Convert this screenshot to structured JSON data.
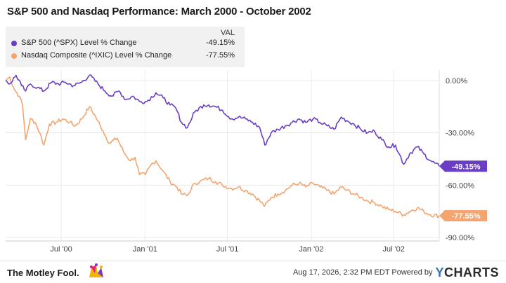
{
  "chart_data": {
    "type": "line",
    "title": "S&P 500 and Nasdaq Performance: March 2000 - October 2002",
    "value_header": "VAL",
    "y_unit": "%",
    "ylim": [
      -92,
      6
    ],
    "xlim": [
      "2000-03-01",
      "2002-10-09"
    ],
    "y_ticks": [
      {
        "value": 0,
        "label": "0.00%"
      },
      {
        "value": -30,
        "label": "-30.00%"
      },
      {
        "value": -60,
        "label": "-60.00%"
      },
      {
        "value": -90,
        "label": "-90.00%"
      }
    ],
    "x_ticks": [
      {
        "date": "2000-07-01",
        "label": "Jul '00"
      },
      {
        "date": "2001-01-01",
        "label": "Jan '01"
      },
      {
        "date": "2001-07-01",
        "label": "Jul '01"
      },
      {
        "date": "2002-01-01",
        "label": "Jan '02"
      },
      {
        "date": "2002-07-01",
        "label": "Jul '02"
      }
    ],
    "grid": true,
    "legend_position": "top-left",
    "series": [
      {
        "name": "S&P 500 (^SPX) Level % Change",
        "value_label": "-49.15%",
        "end_label": "-49.15%",
        "color": "#6a3ec4",
        "points": [
          [
            "2000-03-01",
            0
          ],
          [
            "2000-03-10",
            -2
          ],
          [
            "2000-03-24",
            3
          ],
          [
            "2000-04-05",
            -3
          ],
          [
            "2000-04-14",
            -6
          ],
          [
            "2000-04-24",
            -2
          ],
          [
            "2000-05-10",
            -4
          ],
          [
            "2000-05-24",
            -6
          ],
          [
            "2000-06-10",
            -1
          ],
          [
            "2000-06-25",
            -2
          ],
          [
            "2000-07-10",
            -1
          ],
          [
            "2000-07-28",
            -3
          ],
          [
            "2000-08-15",
            -1
          ],
          [
            "2000-09-01",
            3
          ],
          [
            "2000-09-20",
            -2
          ],
          [
            "2000-10-05",
            -6
          ],
          [
            "2000-10-20",
            -9
          ],
          [
            "2000-11-05",
            -6
          ],
          [
            "2000-11-20",
            -11
          ],
          [
            "2000-12-05",
            -9
          ],
          [
            "2000-12-20",
            -12
          ],
          [
            "2001-01-05",
            -12
          ],
          [
            "2001-01-25",
            -7
          ],
          [
            "2001-02-10",
            -10
          ],
          [
            "2001-02-25",
            -14
          ],
          [
            "2001-03-10",
            -16
          ],
          [
            "2001-03-22",
            -24
          ],
          [
            "2001-04-04",
            -27
          ],
          [
            "2001-04-20",
            -18
          ],
          [
            "2001-05-10",
            -14
          ],
          [
            "2001-05-21",
            -14
          ],
          [
            "2001-06-05",
            -15
          ],
          [
            "2001-06-20",
            -17
          ],
          [
            "2001-07-10",
            -22
          ],
          [
            "2001-07-25",
            -21
          ],
          [
            "2001-08-10",
            -22
          ],
          [
            "2001-08-25",
            -24
          ],
          [
            "2001-09-10",
            -27
          ],
          [
            "2001-09-21",
            -37
          ],
          [
            "2001-10-05",
            -30
          ],
          [
            "2001-10-20",
            -28
          ],
          [
            "2001-11-05",
            -26
          ],
          [
            "2001-11-20",
            -24
          ],
          [
            "2001-12-05",
            -22
          ],
          [
            "2001-12-20",
            -24
          ],
          [
            "2002-01-05",
            -22
          ],
          [
            "2002-01-20",
            -24
          ],
          [
            "2002-02-05",
            -26
          ],
          [
            "2002-02-20",
            -28
          ],
          [
            "2002-03-08",
            -21
          ],
          [
            "2002-03-20",
            -23
          ],
          [
            "2002-04-05",
            -25
          ],
          [
            "2002-04-20",
            -28
          ],
          [
            "2002-05-05",
            -30
          ],
          [
            "2002-05-20",
            -29
          ],
          [
            "2002-06-05",
            -34
          ],
          [
            "2002-06-20",
            -38
          ],
          [
            "2002-07-05",
            -37
          ],
          [
            "2002-07-23",
            -48
          ],
          [
            "2002-08-05",
            -42
          ],
          [
            "2002-08-22",
            -38
          ],
          [
            "2002-09-05",
            -42
          ],
          [
            "2002-09-20",
            -46
          ],
          [
            "2002-10-09",
            -49.15
          ]
        ]
      },
      {
        "name": "Nasdaq Composite (^IXIC) Level % Change",
        "value_label": "-77.55%",
        "end_label": "-77.55%",
        "color": "#f4a46e",
        "points": [
          [
            "2000-03-01",
            0
          ],
          [
            "2000-03-10",
            2
          ],
          [
            "2000-03-20",
            -5
          ],
          [
            "2000-03-31",
            -9
          ],
          [
            "2000-04-07",
            -14
          ],
          [
            "2000-04-14",
            -34
          ],
          [
            "2000-04-24",
            -22
          ],
          [
            "2000-05-05",
            -24
          ],
          [
            "2000-05-15",
            -30
          ],
          [
            "2000-05-24",
            -37
          ],
          [
            "2000-06-05",
            -25
          ],
          [
            "2000-06-20",
            -24
          ],
          [
            "2000-07-05",
            -22
          ],
          [
            "2000-07-20",
            -24
          ],
          [
            "2000-08-01",
            -26
          ],
          [
            "2000-08-15",
            -22
          ],
          [
            "2000-09-01",
            -15
          ],
          [
            "2000-09-15",
            -21
          ],
          [
            "2000-10-01",
            -29
          ],
          [
            "2000-10-15",
            -36
          ],
          [
            "2000-11-01",
            -33
          ],
          [
            "2000-11-15",
            -41
          ],
          [
            "2000-11-30",
            -46
          ],
          [
            "2000-12-10",
            -44
          ],
          [
            "2000-12-20",
            -54
          ],
          [
            "2001-01-02",
            -54
          ],
          [
            "2001-01-15",
            -48
          ],
          [
            "2001-01-25",
            -46
          ],
          [
            "2001-02-10",
            -52
          ],
          [
            "2001-02-25",
            -58
          ],
          [
            "2001-03-12",
            -61
          ],
          [
            "2001-03-22",
            -65
          ],
          [
            "2001-04-04",
            -66
          ],
          [
            "2001-04-20",
            -59
          ],
          [
            "2001-05-01",
            -58
          ],
          [
            "2001-05-21",
            -56
          ],
          [
            "2001-06-05",
            -58
          ],
          [
            "2001-06-20",
            -60
          ],
          [
            "2001-07-10",
            -62
          ],
          [
            "2001-07-25",
            -61
          ],
          [
            "2001-08-10",
            -63
          ],
          [
            "2001-08-25",
            -65
          ],
          [
            "2001-09-10",
            -69
          ],
          [
            "2001-09-21",
            -72
          ],
          [
            "2001-10-05",
            -67
          ],
          [
            "2001-10-20",
            -65
          ],
          [
            "2001-11-05",
            -63
          ],
          [
            "2001-11-20",
            -60
          ],
          [
            "2001-12-05",
            -59
          ],
          [
            "2001-12-20",
            -61
          ],
          [
            "2002-01-05",
            -59
          ],
          [
            "2002-01-20",
            -61
          ],
          [
            "2002-02-05",
            -63
          ],
          [
            "2002-02-20",
            -65
          ],
          [
            "2002-03-08",
            -61
          ],
          [
            "2002-03-20",
            -63
          ],
          [
            "2002-04-05",
            -65
          ],
          [
            "2002-04-20",
            -67
          ],
          [
            "2002-05-05",
            -69
          ],
          [
            "2002-05-20",
            -70
          ],
          [
            "2002-06-05",
            -72
          ],
          [
            "2002-06-20",
            -74
          ],
          [
            "2002-07-05",
            -75
          ],
          [
            "2002-07-23",
            -77
          ],
          [
            "2002-08-05",
            -75
          ],
          [
            "2002-08-22",
            -73
          ],
          [
            "2002-09-05",
            -75
          ],
          [
            "2002-09-20",
            -77
          ],
          [
            "2002-10-09",
            -77.55
          ]
        ]
      }
    ]
  },
  "footer": {
    "logo_text": "The Motley Fool.",
    "timestamp": "Aug 17, 2026, 2:32 PM EDT Powered by",
    "brand_y": "Y",
    "brand_rest": "CHARTS"
  }
}
